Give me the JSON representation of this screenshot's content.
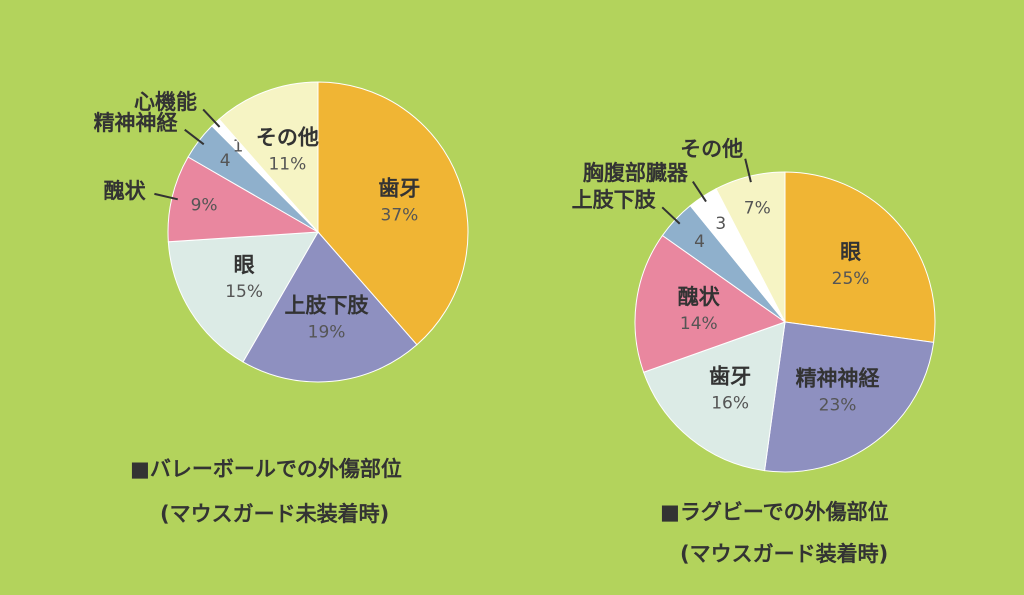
{
  "chart_data": [
    {
      "type": "pie",
      "title": "■バレーボールでの外傷部位",
      "subtitle": "(マウスガード未装着時)",
      "categories": [
        "歯牙",
        "上肢下肢",
        "眼",
        "醜状",
        "精神神経",
        "心機能",
        "その他"
      ],
      "values": [
        37,
        19,
        15,
        9,
        4,
        1,
        11
      ],
      "value_labels": [
        "37%",
        "19%",
        "15%",
        "9%",
        "4",
        "1",
        "11%"
      ],
      "colors": [
        "#f0b534",
        "#8e90c0",
        "#dcebe6",
        "#e9879f",
        "#8fb0cc",
        "#ffffff",
        "#f6f4c4"
      ]
    },
    {
      "type": "pie",
      "title": "■ラグビーでの外傷部位",
      "subtitle": "(マウスガード装着時)",
      "categories": [
        "眼",
        "精神神経",
        "歯牙",
        "醜状",
        "上肢下肢",
        "胸腹部臓器",
        "その他"
      ],
      "values": [
        25,
        23,
        16,
        14,
        4,
        3,
        7
      ],
      "value_labels": [
        "25%",
        "23%",
        "16%",
        "14%",
        "4",
        "3",
        "7%"
      ],
      "colors": [
        "#f0b534",
        "#8e90c0",
        "#dcebe6",
        "#e9879f",
        "#8fb0cc",
        "#ffffff",
        "#f6f4c4"
      ]
    }
  ]
}
